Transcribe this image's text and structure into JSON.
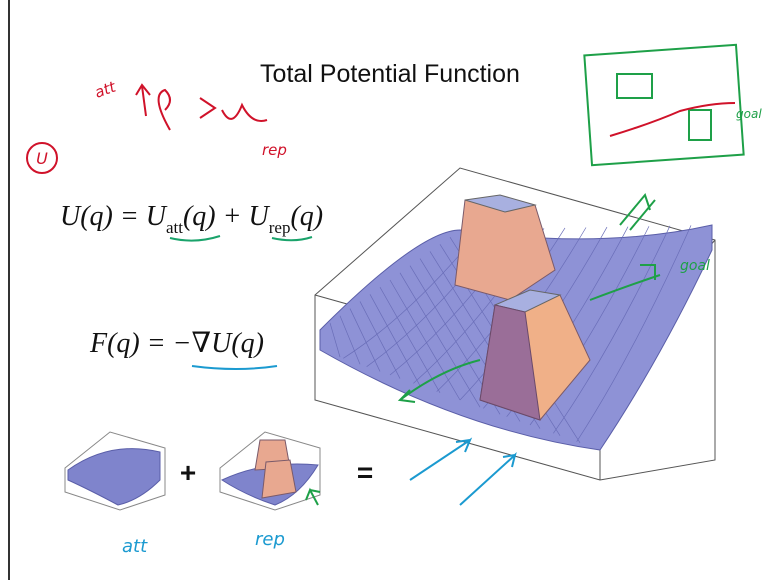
{
  "slide": {
    "title": "Total Potential Function",
    "equation_1": {
      "part_1": "U(q) = U",
      "sub_1": "att",
      "part_2": "(q) + U",
      "sub_2": "rep",
      "part_3": "(q)"
    },
    "equation_2": "F(q) = −∇U(q)",
    "plus": "+",
    "equals": "="
  },
  "annotations": {
    "circled": "U",
    "att_top": "att",
    "rep_top": "rep",
    "goal_sketch": "goal",
    "goal_surface": "goal",
    "att_bottom": "att",
    "rep_bottom": "rep"
  }
}
